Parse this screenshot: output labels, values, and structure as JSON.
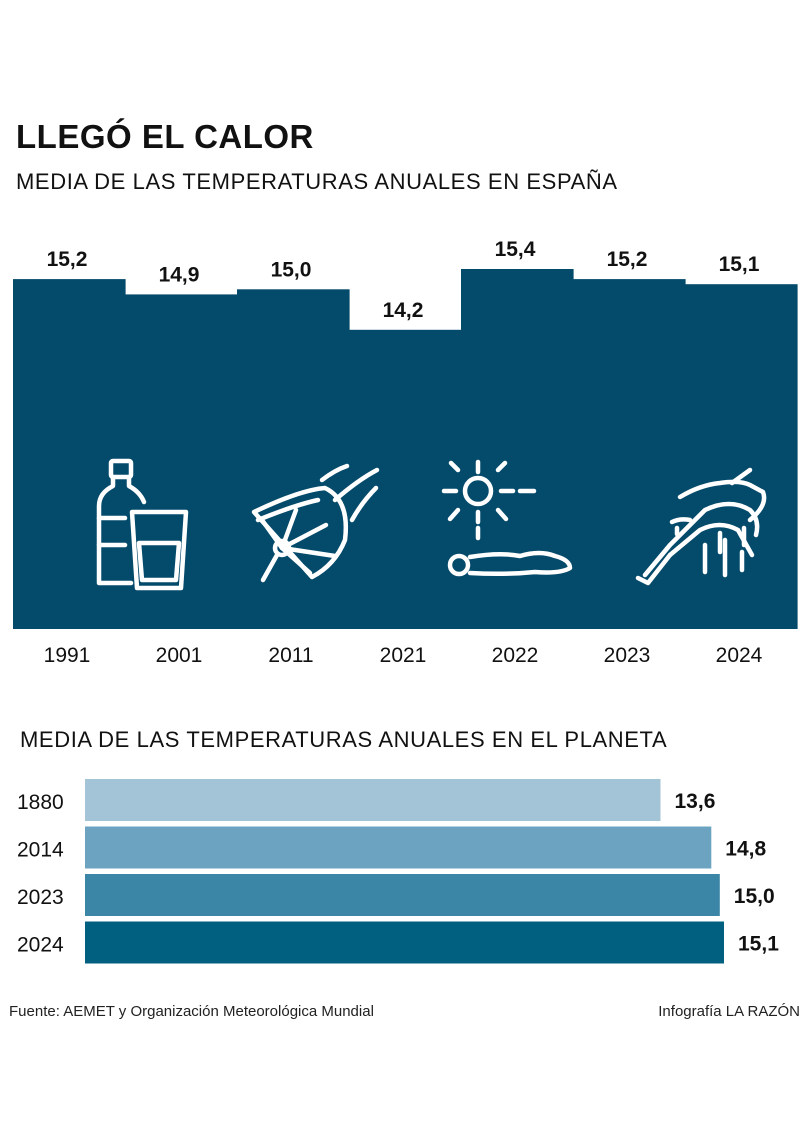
{
  "header": {
    "title": "LLEGÓ EL CALOR",
    "subtitle": "MEDIA DE LAS TEMPERATURAS ANUALES EN ESPAÑA"
  },
  "section2": {
    "subtitle": "MEDIA DE LAS TEMPERATURAS ANUALES EN EL PLANETA"
  },
  "footer": {
    "source": "Fuente: AEMET y Organización Meteorológica Mundial",
    "credit": "Infografía LA RAZÓN"
  },
  "colors": {
    "spain_fill": "#044a6a",
    "planet": [
      "#a3c3d6",
      "#6ca3c0",
      "#3b86a6",
      "#01607f"
    ],
    "icon_stroke": "#ffffff"
  },
  "icons": [
    "water-bottle-and-glass-icon",
    "hand-fan-icon",
    "sunstroke-person-icon",
    "melting-popsicle-icon"
  ],
  "chart_data": [
    {
      "type": "bar",
      "title": "MEDIA DE LAS TEMPERATURAS ANUALES EN ESPAÑA",
      "categories": [
        "1991",
        "2001",
        "2011",
        "2021",
        "2022",
        "2023",
        "2024"
      ],
      "values": [
        15.2,
        14.9,
        15.0,
        14.2,
        15.4,
        15.2,
        15.1
      ],
      "value_labels": [
        "15,2",
        "14,9",
        "15,0",
        "14,2",
        "15,4",
        "15,2",
        "15,1"
      ],
      "ylim": [
        11.0,
        15.4
      ],
      "grid": false
    },
    {
      "type": "bar",
      "orientation": "horizontal",
      "title": "MEDIA DE LAS TEMPERATURAS ANUALES EN EL PLANETA",
      "categories": [
        "1880",
        "2014",
        "2023",
        "2024"
      ],
      "values": [
        13.6,
        14.8,
        15.0,
        15.1
      ],
      "value_labels": [
        "13,6",
        "14,8",
        "15,0",
        "15,1"
      ],
      "xlim": [
        0,
        15.1
      ],
      "grid": false
    }
  ]
}
